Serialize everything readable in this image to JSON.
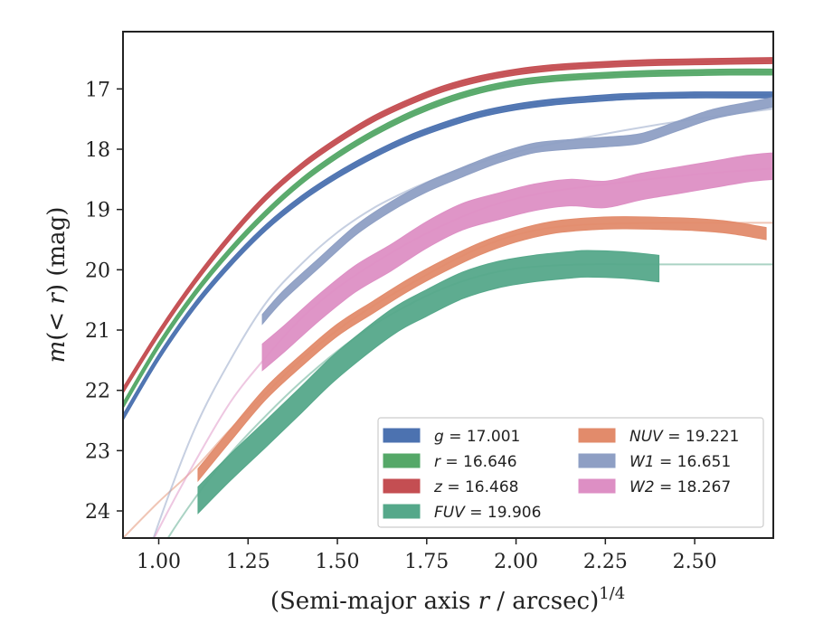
{
  "chart_data": {
    "type": "line",
    "xlabel": "(Semi-major axis r / arcsec)^{1/4}",
    "ylabel": "m(< r) (mag)",
    "xlim": [
      0.9,
      2.72
    ],
    "ylim": [
      24.45,
      16.05
    ],
    "y_inverted": true,
    "grid": false,
    "legend_position": "lower-right",
    "xticks": [
      "1.00",
      "1.25",
      "1.50",
      "1.75",
      "2.00",
      "2.25",
      "2.50"
    ],
    "yticks": [
      "17",
      "18",
      "19",
      "20",
      "21",
      "22",
      "23",
      "24"
    ],
    "series": [
      {
        "name": "g = 17.001",
        "band": "g",
        "total_mag": 17.001,
        "color": "#4c72b0",
        "model_x": [
          0.9,
          1.0,
          1.1,
          1.2,
          1.3,
          1.4,
          1.5,
          1.6,
          1.7,
          1.8,
          1.9,
          2.0,
          2.1,
          2.2,
          2.3,
          2.4,
          2.5,
          2.6,
          2.72
        ],
        "model_y": [
          22.45,
          21.45,
          20.6,
          19.9,
          19.3,
          18.82,
          18.43,
          18.1,
          17.82,
          17.6,
          17.42,
          17.3,
          17.22,
          17.17,
          17.13,
          17.11,
          17.1,
          17.1,
          17.1
        ],
        "data_x": [
          0.9,
          1.0,
          1.1,
          1.2,
          1.3,
          1.4,
          1.5,
          1.6,
          1.7,
          1.8,
          1.9,
          2.0,
          2.1,
          2.2,
          2.3,
          2.4,
          2.5,
          2.6,
          2.72
        ],
        "data_y": [
          22.45,
          21.45,
          20.6,
          19.9,
          19.3,
          18.82,
          18.43,
          18.1,
          17.82,
          17.6,
          17.42,
          17.3,
          17.22,
          17.17,
          17.13,
          17.11,
          17.1,
          17.1,
          17.1
        ],
        "data_err": 0.05
      },
      {
        "name": "r = 16.646",
        "band": "r",
        "total_mag": 16.646,
        "color": "#55a868",
        "model_x": [
          0.9,
          1.0,
          1.1,
          1.2,
          1.3,
          1.4,
          1.5,
          1.6,
          1.7,
          1.8,
          1.9,
          2.0,
          2.1,
          2.2,
          2.3,
          2.4,
          2.5,
          2.6,
          2.72
        ],
        "model_y": [
          22.25,
          21.25,
          20.4,
          19.68,
          19.06,
          18.53,
          18.1,
          17.74,
          17.44,
          17.2,
          17.02,
          16.9,
          16.83,
          16.79,
          16.76,
          16.74,
          16.73,
          16.72,
          16.72
        ],
        "data_x": [
          0.9,
          1.0,
          1.1,
          1.2,
          1.3,
          1.4,
          1.5,
          1.6,
          1.7,
          1.8,
          1.9,
          2.0,
          2.1,
          2.2,
          2.3,
          2.4,
          2.5,
          2.6,
          2.72
        ],
        "data_y": [
          22.25,
          21.25,
          20.4,
          19.68,
          19.06,
          18.53,
          18.1,
          17.74,
          17.44,
          17.2,
          17.02,
          16.9,
          16.83,
          16.79,
          16.76,
          16.74,
          16.73,
          16.72,
          16.72
        ],
        "data_err": 0.05
      },
      {
        "name": "z = 16.468",
        "band": "z",
        "total_mag": 16.468,
        "color": "#c44e52",
        "model_x": [
          0.9,
          1.0,
          1.1,
          1.2,
          1.3,
          1.4,
          1.5,
          1.6,
          1.7,
          1.8,
          1.9,
          2.0,
          2.1,
          2.2,
          2.3,
          2.4,
          2.5,
          2.6,
          2.72
        ],
        "model_y": [
          22.0,
          21.05,
          20.2,
          19.45,
          18.8,
          18.28,
          17.86,
          17.5,
          17.22,
          16.99,
          16.83,
          16.72,
          16.65,
          16.61,
          16.58,
          16.56,
          16.55,
          16.54,
          16.53
        ],
        "data_x": [
          0.9,
          1.0,
          1.1,
          1.2,
          1.3,
          1.4,
          1.5,
          1.6,
          1.7,
          1.8,
          1.9,
          2.0,
          2.1,
          2.2,
          2.3,
          2.4,
          2.5,
          2.6,
          2.72
        ],
        "data_y": [
          22.0,
          21.05,
          20.2,
          19.45,
          18.8,
          18.28,
          17.86,
          17.5,
          17.22,
          16.99,
          16.83,
          16.72,
          16.65,
          16.61,
          16.58,
          16.56,
          16.55,
          16.54,
          16.53
        ],
        "data_err": 0.05
      },
      {
        "name": "FUV = 19.906",
        "band": "FUV",
        "total_mag": 19.906,
        "color": "#55a88a",
        "model_x": [
          0.9,
          1.0,
          1.1,
          1.2,
          1.3,
          1.4,
          1.5,
          1.6,
          1.7,
          1.8,
          1.9,
          2.0,
          2.1,
          2.2,
          2.3,
          2.4,
          2.5,
          2.6,
          2.72
        ],
        "model_y": [
          25.8,
          24.7,
          23.8,
          23.05,
          22.42,
          21.85,
          21.35,
          20.92,
          20.58,
          20.3,
          20.1,
          19.98,
          19.93,
          19.91,
          19.91,
          19.91,
          19.91,
          19.91,
          19.91
        ],
        "data_x": [
          1.11,
          1.2,
          1.3,
          1.4,
          1.5,
          1.65,
          1.75,
          1.85,
          1.95,
          2.05,
          2.15,
          2.2,
          2.3,
          2.4
        ],
        "data_y": [
          23.82,
          23.28,
          22.72,
          22.15,
          21.58,
          20.88,
          20.55,
          20.26,
          20.08,
          19.98,
          19.92,
          19.9,
          19.92,
          19.98
        ],
        "data_err": 0.22
      },
      {
        "name": "NUV = 19.221",
        "band": "NUV",
        "total_mag": 19.221,
        "color": "#e28b6b",
        "model_x": [
          0.9,
          1.0,
          1.1,
          1.2,
          1.3,
          1.4,
          1.5,
          1.6,
          1.7,
          1.8,
          1.9,
          2.0,
          2.1,
          2.2,
          2.3,
          2.4,
          2.5,
          2.6,
          2.72
        ],
        "model_y": [
          24.45,
          23.85,
          23.3,
          22.65,
          22.05,
          21.48,
          21.0,
          20.6,
          20.25,
          19.92,
          19.63,
          19.42,
          19.3,
          19.25,
          19.23,
          19.22,
          19.22,
          19.22,
          19.22
        ],
        "data_x": [
          1.11,
          1.2,
          1.3,
          1.4,
          1.5,
          1.6,
          1.7,
          1.8,
          1.9,
          2.0,
          2.1,
          2.2,
          2.3,
          2.4,
          2.5,
          2.6,
          2.7
        ],
        "data_y": [
          23.4,
          22.75,
          22.05,
          21.5,
          21.0,
          20.62,
          20.25,
          19.93,
          19.65,
          19.44,
          19.3,
          19.24,
          19.22,
          19.23,
          19.25,
          19.3,
          19.4
        ],
        "data_err": 0.1
      },
      {
        "name": "W1 = 16.651",
        "band": "W1",
        "total_mag": 16.651,
        "color": "#8e9fc4",
        "model_x": [
          0.9,
          1.0,
          1.1,
          1.2,
          1.3,
          1.4,
          1.5,
          1.6,
          1.7,
          1.8,
          1.9,
          2.0,
          2.1,
          2.2,
          2.3,
          2.4,
          2.5,
          2.6,
          2.72
        ],
        "model_y": [
          26.0,
          24.2,
          22.65,
          21.5,
          20.55,
          19.9,
          19.38,
          18.98,
          18.68,
          18.43,
          18.22,
          18.05,
          17.91,
          17.8,
          17.69,
          17.59,
          17.5,
          17.42,
          17.33
        ],
        "data_x": [
          1.29,
          1.35,
          1.45,
          1.55,
          1.65,
          1.75,
          1.85,
          1.95,
          2.05,
          2.15,
          2.25,
          2.35,
          2.45,
          2.55,
          2.65,
          2.72
        ],
        "data_y": [
          20.82,
          20.42,
          19.88,
          19.35,
          18.95,
          18.63,
          18.38,
          18.15,
          17.98,
          17.92,
          17.88,
          17.82,
          17.62,
          17.42,
          17.3,
          17.22
        ],
        "data_err": 0.08
      },
      {
        "name": "W2 = 18.267",
        "band": "W2",
        "total_mag": 18.267,
        "color": "#dd8fc4",
        "model_x": [
          0.9,
          1.0,
          1.1,
          1.2,
          1.3,
          1.4,
          1.5,
          1.6,
          1.7,
          1.8,
          1.9,
          2.0,
          2.1,
          2.2,
          2.3,
          2.4,
          2.5,
          2.6,
          2.72
        ],
        "model_y": [
          25.5,
          24.3,
          23.2,
          22.2,
          21.45,
          20.8,
          20.3,
          19.9,
          19.55,
          19.25,
          19.0,
          18.82,
          18.7,
          18.62,
          18.55,
          18.48,
          18.42,
          18.37,
          18.32
        ],
        "data_x": [
          1.29,
          1.35,
          1.45,
          1.55,
          1.65,
          1.75,
          1.85,
          1.95,
          2.05,
          2.15,
          2.25,
          2.35,
          2.45,
          2.55,
          2.65,
          2.72
        ],
        "data_y": [
          21.45,
          21.15,
          20.62,
          20.15,
          19.8,
          19.42,
          19.12,
          18.95,
          18.8,
          18.72,
          18.75,
          18.62,
          18.52,
          18.42,
          18.32,
          18.28
        ],
        "data_err": 0.22
      }
    ],
    "legend": {
      "ncol": 2,
      "entries": [
        {
          "var": "g",
          "value": "17.001",
          "color": "#4c72b0"
        },
        {
          "var": "r",
          "value": "16.646",
          "color": "#55a868"
        },
        {
          "var": "z",
          "value": "16.468",
          "color": "#c44e52"
        },
        {
          "var": "FUV",
          "value": "19.906",
          "color": "#55a88a"
        },
        {
          "var": "NUV",
          "value": "19.221",
          "color": "#e28b6b"
        },
        {
          "var": "W1",
          "value": "16.651",
          "color": "#8e9fc4"
        },
        {
          "var": "W2",
          "value": "18.267",
          "color": "#dd8fc4"
        }
      ]
    }
  }
}
